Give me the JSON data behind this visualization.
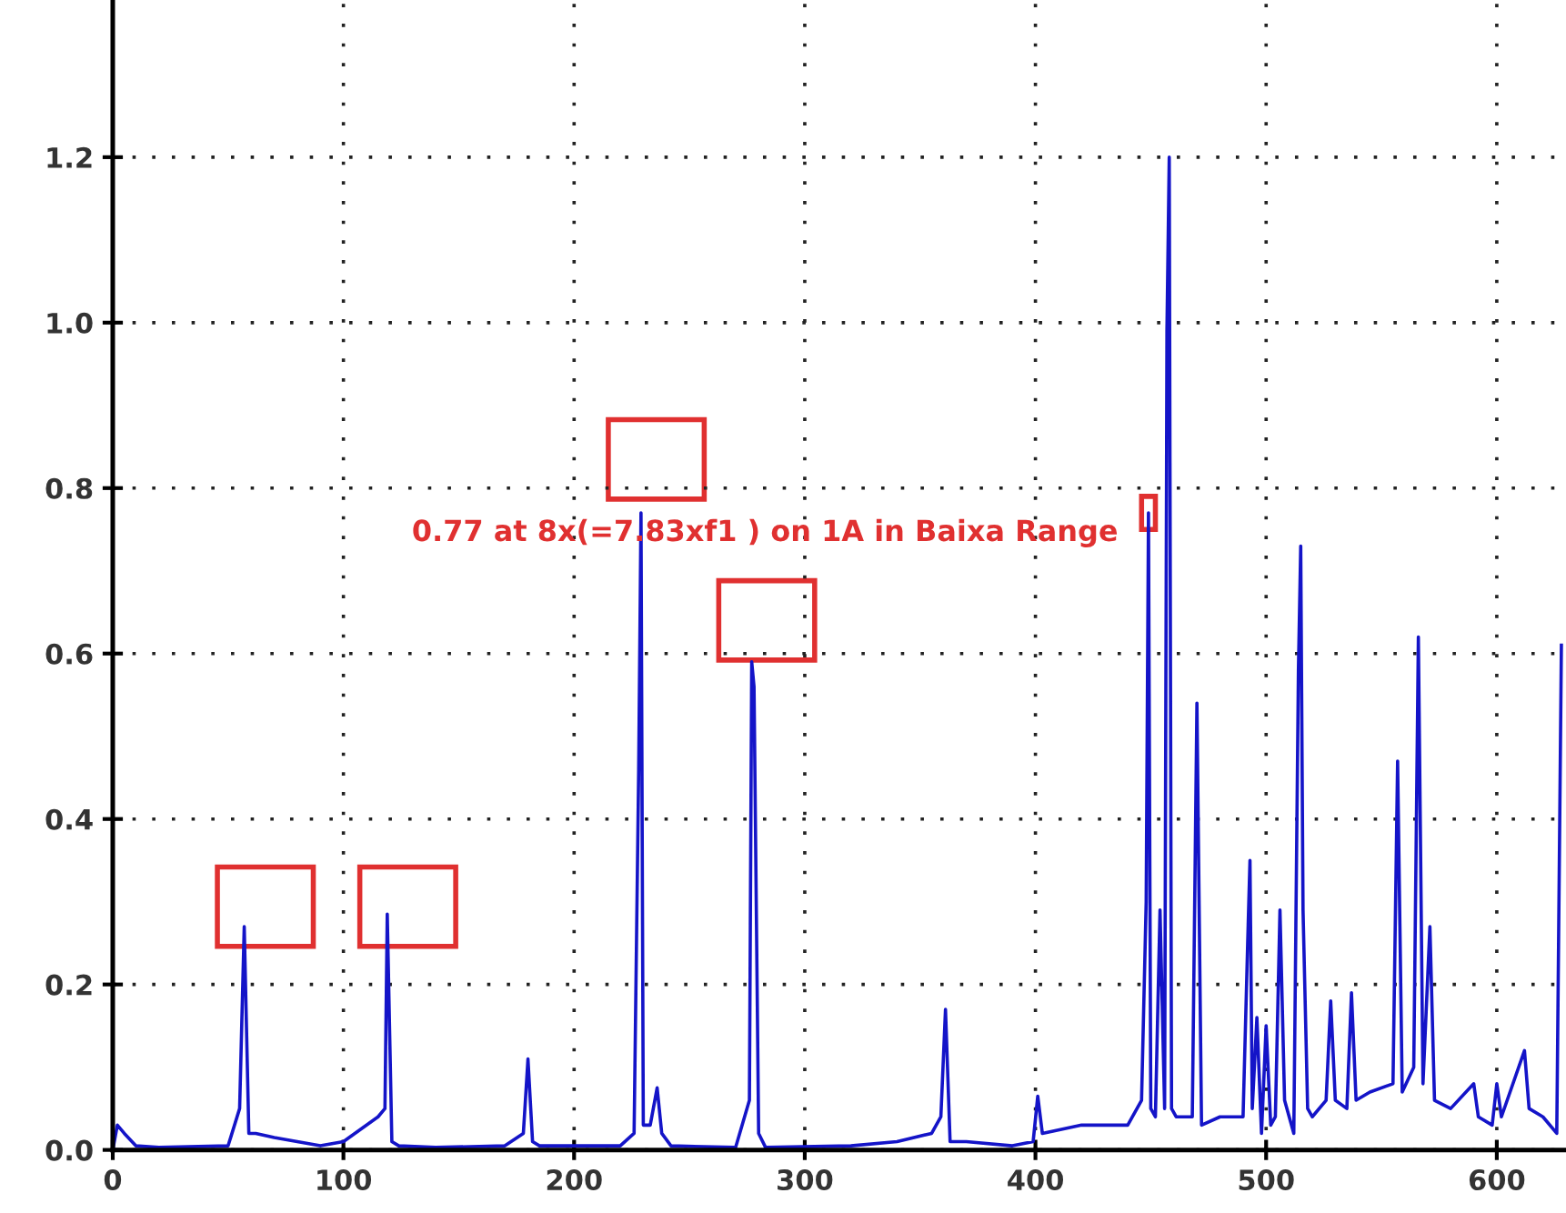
{
  "chart_data": {
    "type": "line",
    "x": [
      0,
      2,
      5,
      10,
      20,
      50,
      55,
      57,
      59,
      62,
      70,
      90,
      100,
      115,
      118,
      119,
      121,
      124,
      140,
      170,
      178,
      180,
      182,
      185,
      220,
      226,
      228,
      229,
      230,
      233,
      236,
      238,
      242,
      270,
      276,
      277,
      278,
      280,
      283,
      320,
      340,
      355,
      359,
      361,
      363,
      370,
      390,
      399,
      401,
      403,
      420,
      440,
      446,
      448,
      449,
      450,
      452,
      454,
      456,
      457,
      458,
      459,
      461,
      468,
      470,
      472,
      480,
      490,
      492,
      493,
      494,
      496,
      498,
      500,
      502,
      504,
      506,
      508,
      512,
      514,
      515,
      516,
      518,
      520,
      526,
      528,
      530,
      535,
      537,
      539,
      545,
      555,
      557,
      559,
      564,
      566,
      568,
      571,
      573,
      580,
      590,
      592,
      598,
      600,
      602,
      612,
      614,
      620,
      626,
      628
    ],
    "series": [
      {
        "color": "#1414c8",
        "values": [
          0.0,
          0.03,
          0.02,
          0.005,
          0.003,
          0.005,
          0.05,
          0.27,
          0.02,
          0.02,
          0.015,
          0.005,
          0.01,
          0.04,
          0.05,
          0.285,
          0.01,
          0.005,
          0.003,
          0.005,
          0.02,
          0.11,
          0.01,
          0.005,
          0.005,
          0.02,
          0.46,
          0.77,
          0.03,
          0.03,
          0.075,
          0.02,
          0.005,
          0.003,
          0.06,
          0.59,
          0.56,
          0.02,
          0.003,
          0.005,
          0.01,
          0.02,
          0.04,
          0.17,
          0.01,
          0.01,
          0.005,
          0.01,
          0.065,
          0.02,
          0.03,
          0.03,
          0.06,
          0.3,
          0.77,
          0.05,
          0.04,
          0.29,
          0.05,
          0.99,
          1.2,
          0.05,
          0.04,
          0.04,
          0.54,
          0.03,
          0.04,
          0.04,
          0.25,
          0.35,
          0.05,
          0.16,
          0.02,
          0.15,
          0.03,
          0.04,
          0.29,
          0.06,
          0.02,
          0.58,
          0.73,
          0.29,
          0.05,
          0.04,
          0.06,
          0.18,
          0.06,
          0.05,
          0.19,
          0.06,
          0.07,
          0.08,
          0.47,
          0.07,
          0.1,
          0.62,
          0.08,
          0.27,
          0.06,
          0.05,
          0.08,
          0.04,
          0.03,
          0.08,
          0.04,
          0.12,
          0.05,
          0.04,
          0.02,
          0.61
        ]
      }
    ],
    "xlim": [
      0,
      630
    ],
    "ylim": [
      0,
      1.39
    ],
    "xticks": [
      0,
      100,
      200,
      300,
      400,
      500,
      600
    ],
    "yticks": [
      {
        "value": 0,
        "label": "0.0"
      },
      {
        "value": 0.2,
        "label": "0.2"
      },
      {
        "value": 0.4,
        "label": "0.4"
      },
      {
        "value": 0.6,
        "label": "0.6"
      },
      {
        "value": 0.8,
        "label": "0.8"
      },
      {
        "value": 1.0,
        "label": "1.0"
      },
      {
        "value": 1.2,
        "label": "1.2"
      }
    ],
    "grid": true,
    "line_style": "solid",
    "marker": "none",
    "annotations": [
      {
        "text": "0.77 at 8x(=7.83xf1 ) on 1A in Baixa Range",
        "x": 449,
        "y": 0.77
      }
    ]
  }
}
